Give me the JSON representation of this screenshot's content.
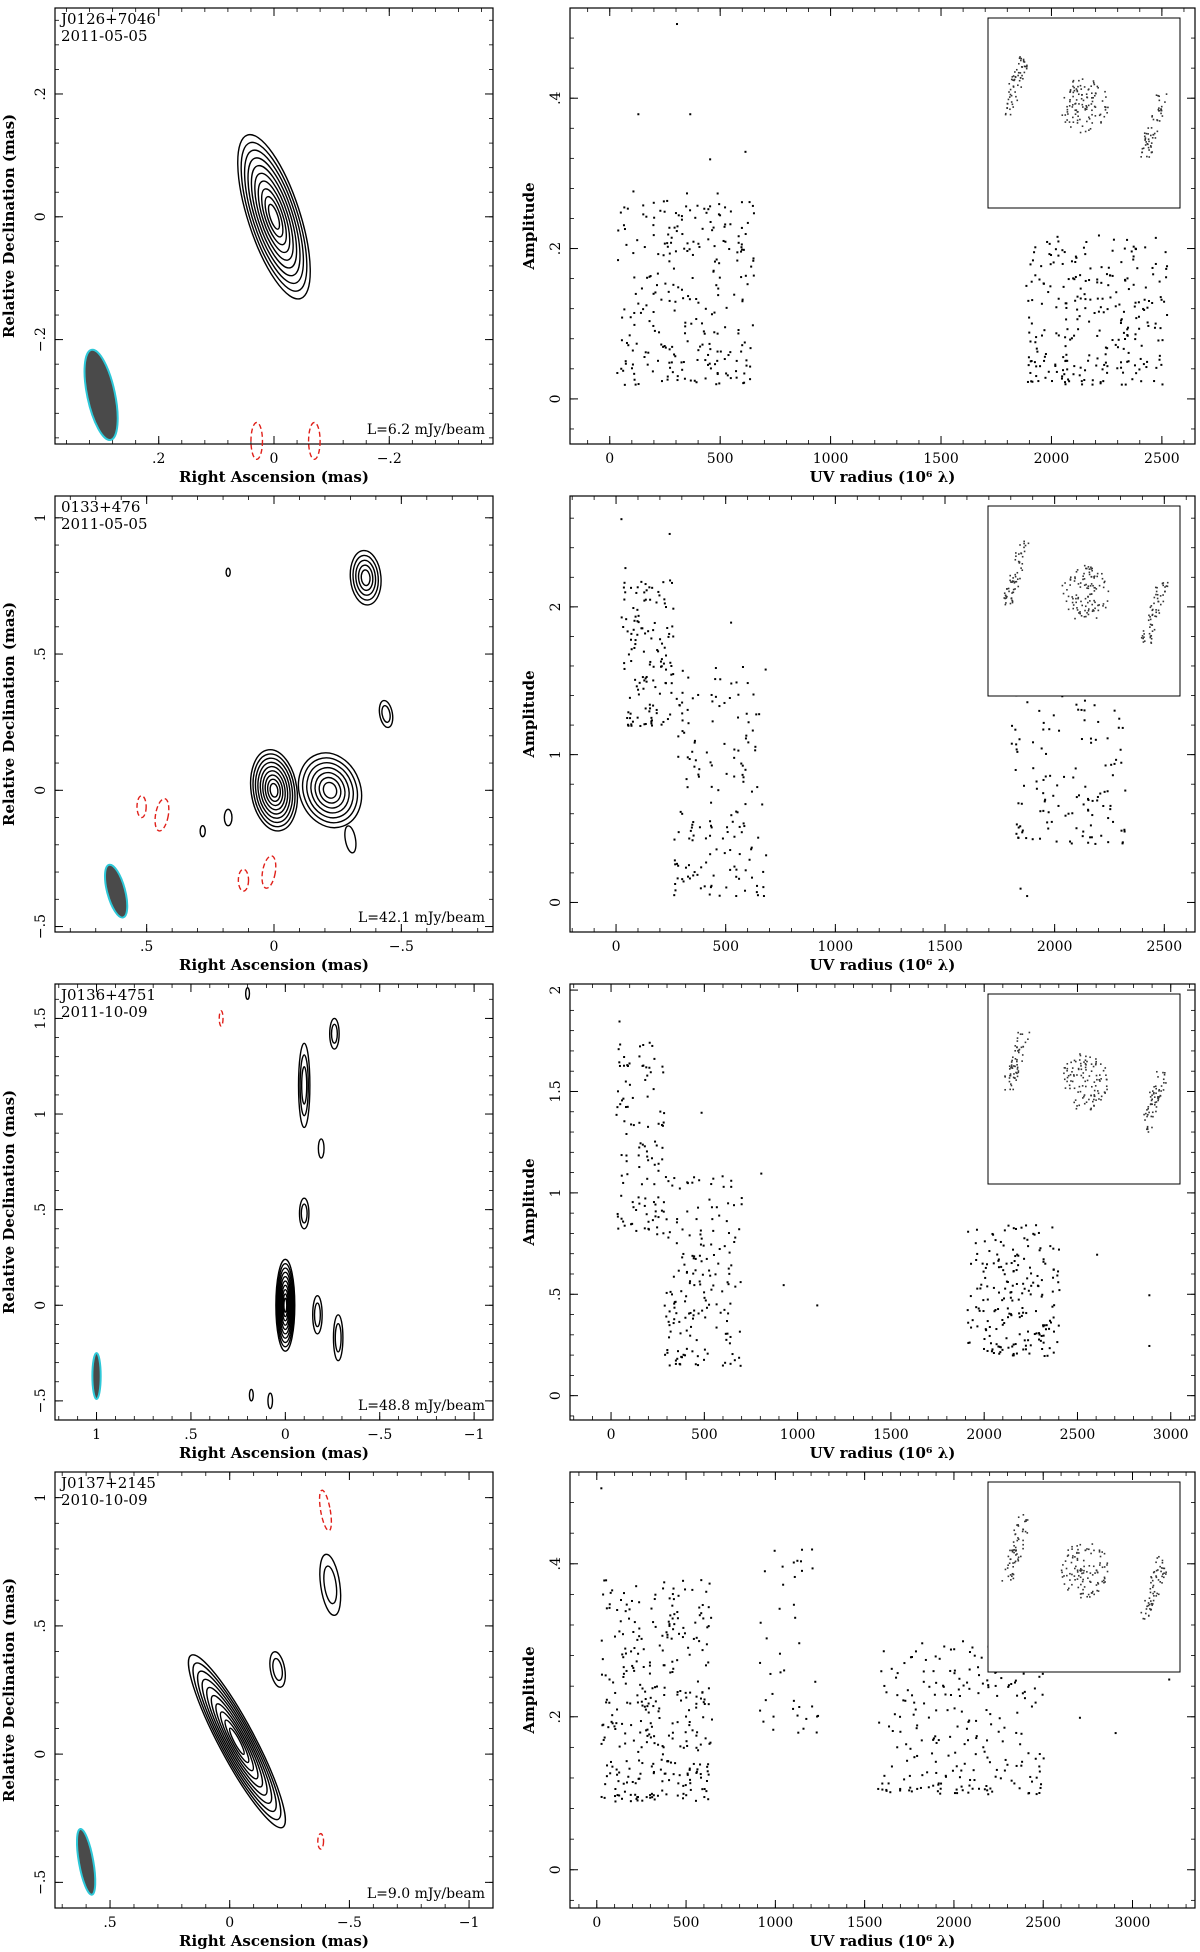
{
  "figure": {
    "rows": [
      {
        "map": {
          "source": "J0126+7046",
          "date": "2011-05-05",
          "level": "L=6.2 mJy/beam",
          "xlabel": "Right Ascension  (mas)",
          "ylabel": "Relative Declination  (mas)",
          "xlim": [
            0.38,
            -0.38
          ],
          "ylim": [
            -0.37,
            0.34
          ],
          "xticks": [
            0.2,
            0,
            -0.2
          ],
          "yticks": [
            -0.2,
            0,
            0.2
          ],
          "beam": {
            "x": 0.3,
            "y": -0.29,
            "a": 0.075,
            "b": 0.024,
            "pa": -12
          },
          "components": [
            {
              "x": 0.0,
              "y": 0.0,
              "a": 0.14,
              "b": 0.045,
              "pa": -18,
              "n": 10
            }
          ],
          "negatives": [
            {
              "x": 0.03,
              "y": -0.365,
              "a": 0.03,
              "b": 0.01,
              "pa": 0
            },
            {
              "x": -0.07,
              "y": -0.365,
              "a": 0.03,
              "b": 0.01,
              "pa": 0
            }
          ]
        },
        "uv": {
          "xlabel": "UV radius  (10⁶ λ)",
          "ylabel": "Amplitude",
          "xlim": [
            -180,
            2650
          ],
          "ylim": [
            -0.06,
            0.52
          ],
          "xticks": [
            0,
            500,
            1000,
            1500,
            2000,
            2500
          ],
          "yticks": [
            0,
            0.2,
            0.4
          ],
          "clusters": [
            {
              "x0": 20,
              "x1": 650,
              "y0": 0.02,
              "y1": 0.28,
              "n": 260
            },
            {
              "x0": 1880,
              "x1": 2520,
              "y0": 0.02,
              "y1": 0.22,
              "n": 260
            }
          ],
          "outliers": [
            [
              300,
              0.5
            ],
            [
              125,
              0.38
            ],
            [
              360,
              0.38
            ],
            [
              450,
              0.32
            ],
            [
              610,
              0.33
            ],
            [
              2200,
              0.28
            ]
          ]
        }
      },
      {
        "map": {
          "source": "0133+476",
          "date": "2011-05-05",
          "level": "L=42.1 mJy/beam",
          "xlabel": "Right Ascension  (mas)",
          "ylabel": "Relative Declination  (mas)",
          "xlim": [
            0.86,
            -0.86
          ],
          "ylim": [
            -0.52,
            1.08
          ],
          "xticks": [
            0.5,
            0,
            -0.5
          ],
          "yticks": [
            -0.5,
            0,
            0.5,
            1
          ],
          "beam": {
            "x": 0.62,
            "y": -0.37,
            "a": 0.1,
            "b": 0.035,
            "pa": -15
          },
          "components": [
            {
              "x": 0.0,
              "y": 0.0,
              "a": 0.15,
              "b": 0.09,
              "pa": -8,
              "n": 9
            },
            {
              "x": -0.22,
              "y": 0.0,
              "a": 0.14,
              "b": 0.12,
              "pa": -20,
              "n": 7
            },
            {
              "x": -0.36,
              "y": 0.78,
              "a": 0.1,
              "b": 0.06,
              "pa": -5,
              "n": 5
            },
            {
              "x": -0.44,
              "y": 0.28,
              "a": 0.05,
              "b": 0.025,
              "pa": -10,
              "n": 2
            },
            {
              "x": -0.3,
              "y": -0.18,
              "a": 0.05,
              "b": 0.02,
              "pa": -10,
              "n": 1
            },
            {
              "x": 0.18,
              "y": -0.1,
              "a": 0.03,
              "b": 0.015,
              "pa": 0,
              "n": 1
            },
            {
              "x": 0.28,
              "y": -0.15,
              "a": 0.02,
              "b": 0.01,
              "pa": 0,
              "n": 1
            },
            {
              "x": 0.18,
              "y": 0.8,
              "a": 0.015,
              "b": 0.008,
              "pa": 0,
              "n": 1
            }
          ],
          "negatives": [
            {
              "x": 0.44,
              "y": -0.09,
              "a": 0.06,
              "b": 0.025,
              "pa": 10
            },
            {
              "x": 0.52,
              "y": -0.06,
              "a": 0.04,
              "b": 0.018,
              "pa": 0
            },
            {
              "x": 0.12,
              "y": -0.33,
              "a": 0.04,
              "b": 0.02,
              "pa": 0
            },
            {
              "x": 0.02,
              "y": -0.3,
              "a": 0.06,
              "b": 0.025,
              "pa": 10
            }
          ]
        },
        "uv": {
          "xlabel": "UV radius  (10⁶ λ)",
          "ylabel": "Amplitude",
          "xlim": [
            -210,
            2640
          ],
          "ylim": [
            -0.2,
            2.75
          ],
          "xticks": [
            0,
            500,
            1000,
            1500,
            2000,
            2500
          ],
          "yticks": [
            0,
            1,
            2
          ],
          "clusters": [
            {
              "x0": 20,
              "x1": 260,
              "y0": 1.2,
              "y1": 2.3,
              "n": 130
            },
            {
              "x0": 260,
              "x1": 680,
              "y0": 0.05,
              "y1": 1.6,
              "n": 160
            },
            {
              "x0": 1800,
              "x1": 2320,
              "y0": 0.4,
              "y1": 1.6,
              "n": 140
            }
          ],
          "outliers": [
            [
              20,
              2.6
            ],
            [
              240,
              2.5
            ],
            [
              520,
              1.9
            ],
            [
              1870,
              0.05
            ],
            [
              1840,
              0.1
            ]
          ]
        }
      },
      {
        "map": {
          "source": "J0136+4751",
          "date": "2011-10-09",
          "level": "L=48.8 mJy/beam",
          "xlabel": "Right Ascension  (mas)",
          "ylabel": "Relative Declination  (mas)",
          "xlim": [
            1.22,
            -1.1
          ],
          "ylim": [
            -0.6,
            1.68
          ],
          "xticks": [
            1,
            0.5,
            0,
            -0.5,
            -1
          ],
          "yticks": [
            -0.5,
            0,
            0.5,
            1,
            1.5
          ],
          "beam": {
            "x": 1.0,
            "y": -0.37,
            "a": 0.12,
            "b": 0.022,
            "pa": 0
          },
          "components": [
            {
              "x": 0.0,
              "y": 0.0,
              "a": 0.24,
              "b": 0.05,
              "pa": 0,
              "n": 10
            },
            {
              "x": -0.1,
              "y": 1.15,
              "a": 0.22,
              "b": 0.03,
              "pa": 0,
              "n": 3
            },
            {
              "x": -0.1,
              "y": 0.48,
              "a": 0.08,
              "b": 0.025,
              "pa": 0,
              "n": 2
            },
            {
              "x": -0.26,
              "y": 1.42,
              "a": 0.08,
              "b": 0.025,
              "pa": 0,
              "n": 2
            },
            {
              "x": -0.17,
              "y": -0.05,
              "a": 0.1,
              "b": 0.025,
              "pa": 0,
              "n": 2
            },
            {
              "x": -0.28,
              "y": -0.17,
              "a": 0.12,
              "b": 0.025,
              "pa": 0,
              "n": 2
            },
            {
              "x": -0.19,
              "y": 0.82,
              "a": 0.05,
              "b": 0.015,
              "pa": 0,
              "n": 1
            },
            {
              "x": 0.08,
              "y": -0.5,
              "a": 0.04,
              "b": 0.012,
              "pa": 0,
              "n": 1
            },
            {
              "x": 0.18,
              "y": -0.47,
              "a": 0.03,
              "b": 0.01,
              "pa": 0,
              "n": 1
            },
            {
              "x": 0.2,
              "y": 1.63,
              "a": 0.03,
              "b": 0.01,
              "pa": 0,
              "n": 1
            }
          ],
          "negatives": [
            {
              "x": 0.34,
              "y": 1.5,
              "a": 0.04,
              "b": 0.01,
              "pa": 0
            }
          ]
        },
        "uv": {
          "xlabel": "UV radius  (10⁶ λ)",
          "ylabel": "Amplitude",
          "xlim": [
            -220,
            3130
          ],
          "ylim": [
            -0.12,
            2.03
          ],
          "xticks": [
            0,
            500,
            1000,
            1500,
            2000,
            2500,
            3000
          ],
          "yticks": [
            0,
            0.5,
            1,
            1.5,
            2
          ],
          "clusters": [
            {
              "x0": 20,
              "x1": 280,
              "y0": 0.8,
              "y1": 1.8,
              "n": 110
            },
            {
              "x0": 280,
              "x1": 700,
              "y0": 0.15,
              "y1": 1.1,
              "n": 170
            },
            {
              "x0": 1900,
              "x1": 2400,
              "y0": 0.2,
              "y1": 0.85,
              "n": 200
            }
          ],
          "outliers": [
            [
              40,
              1.85
            ],
            [
              480,
              1.4
            ],
            [
              800,
              1.1
            ],
            [
              1100,
              0.45
            ],
            [
              920,
              0.55
            ],
            [
              2600,
              0.7
            ],
            [
              2880,
              0.5
            ],
            [
              2880,
              0.25
            ]
          ]
        }
      },
      {
        "map": {
          "source": "J0137+2145",
          "date": "2010-10-09",
          "level": "L=9.0 mJy/beam",
          "xlabel": "Right Ascension  (mas)",
          "ylabel": "Relative Declination  (mas)",
          "xlim": [
            0.73,
            -1.1
          ],
          "ylim": [
            -0.6,
            1.1
          ],
          "xticks": [
            0.5,
            0,
            -0.5,
            -1
          ],
          "yticks": [
            -0.5,
            0,
            0.5,
            1
          ],
          "beam": {
            "x": 0.6,
            "y": -0.42,
            "a": 0.13,
            "b": 0.03,
            "pa": -10
          },
          "components": [
            {
              "x": -0.03,
              "y": 0.05,
              "a": 0.38,
              "b": 0.075,
              "pa": -28,
              "n": 10
            },
            {
              "x": -0.42,
              "y": 0.66,
              "a": 0.12,
              "b": 0.04,
              "pa": -8,
              "n": 2
            },
            {
              "x": -0.2,
              "y": 0.33,
              "a": 0.07,
              "b": 0.03,
              "pa": -10,
              "n": 2
            }
          ],
          "negatives": [
            {
              "x": -0.4,
              "y": 0.95,
              "a": 0.08,
              "b": 0.02,
              "pa": -10
            },
            {
              "x": -0.38,
              "y": -0.34,
              "a": 0.03,
              "b": 0.012,
              "pa": 0
            }
          ]
        },
        "uv": {
          "xlabel": "UV radius  (10⁶ λ)",
          "ylabel": "Amplitude",
          "xlim": [
            -150,
            3350
          ],
          "ylim": [
            -0.05,
            0.52
          ],
          "xticks": [
            0,
            500,
            1000,
            1500,
            2000,
            2500,
            3000
          ],
          "yticks": [
            0,
            0.2,
            0.4
          ],
          "clusters": [
            {
              "x0": 20,
              "x1": 640,
              "y0": 0.09,
              "y1": 0.38,
              "n": 330
            },
            {
              "x0": 900,
              "x1": 1250,
              "y0": 0.18,
              "y1": 0.42,
              "n": 40
            },
            {
              "x0": 1550,
              "x1": 2500,
              "y0": 0.1,
              "y1": 0.3,
              "n": 230
            }
          ],
          "outliers": [
            [
              20,
              0.5
            ],
            [
              1200,
              0.42
            ],
            [
              2700,
              0.2
            ],
            [
              2900,
              0.18
            ],
            [
              3200,
              0.25
            ]
          ]
        }
      }
    ]
  }
}
